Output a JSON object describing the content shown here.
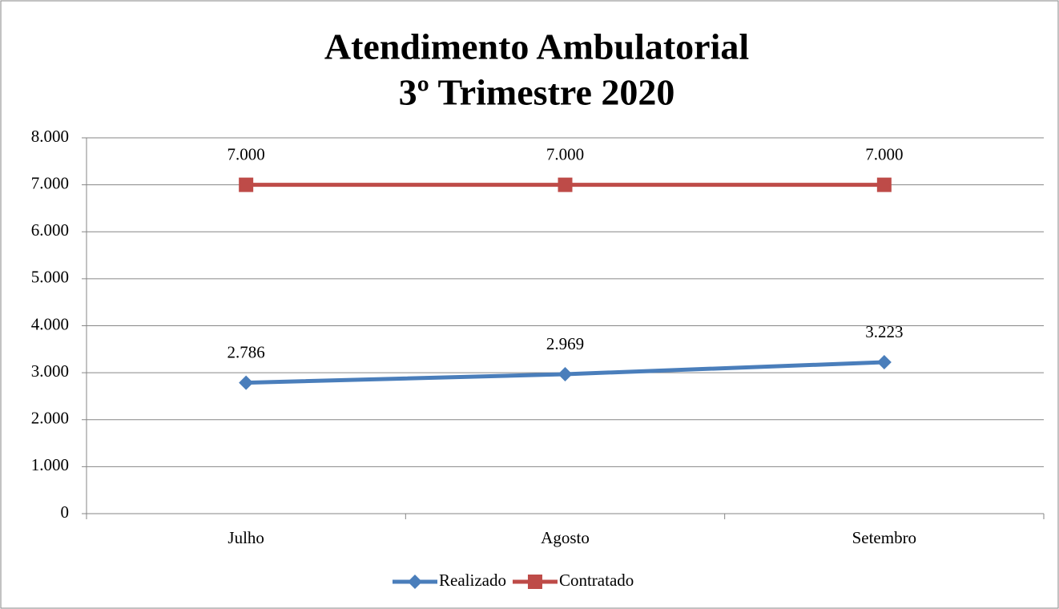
{
  "chart_data": {
    "type": "line",
    "title": [
      "Atendimento Ambulatorial",
      "3º Trimestre 2020"
    ],
    "categories": [
      "Julho",
      "Agosto",
      "Setembro"
    ],
    "series": [
      {
        "name": "Realizado",
        "color": "#4a7ebb",
        "marker": "diamond",
        "values": [
          2786,
          2969,
          3223
        ],
        "value_labels": [
          "2.786",
          "2.969",
          "3.223"
        ]
      },
      {
        "name": "Contratado",
        "color": "#be4b48",
        "marker": "square",
        "values": [
          7000,
          7000,
          7000
        ],
        "value_labels": [
          "7.000",
          "7.000",
          "7.000"
        ]
      }
    ],
    "ylim": [
      0,
      8000
    ],
    "yticks": [
      0,
      {
        "value": 1000,
        "label": "1.000"
      },
      {
        "value": 2000,
        "label": "2.000"
      },
      {
        "value": 3000,
        "label": "3.000"
      },
      {
        "value": 4000,
        "label": "4.000"
      },
      {
        "value": 5000,
        "label": "5.000"
      },
      {
        "value": 6000,
        "label": "6.000"
      },
      {
        "value": 7000,
        "label": "7.000"
      },
      {
        "value": 8000,
        "label": "8.000"
      }
    ],
    "grid": true,
    "legend": "bottom"
  }
}
